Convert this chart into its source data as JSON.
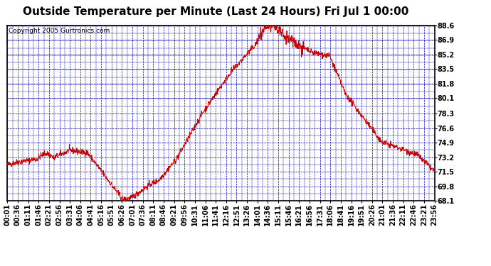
{
  "title": "Outside Temperature per Minute (Last 24 Hours) Fri Jul 1 00:00",
  "copyright": "Copyright 2005 Gurtronics.com",
  "ylabel_values": [
    68.1,
    69.8,
    71.5,
    73.2,
    74.9,
    76.6,
    78.3,
    80.1,
    81.8,
    83.5,
    85.2,
    86.9,
    88.6
  ],
  "ymin": 68.1,
  "ymax": 88.6,
  "bg_color": "#ffffff",
  "plot_bg_color": "#ffffff",
  "grid_color": "#0000bb",
  "line_color": "#cc0000",
  "title_fontsize": 11,
  "copyright_fontsize": 6.5,
  "tick_label_fontsize": 7,
  "x_tick_labels": [
    "00:01",
    "00:36",
    "01:11",
    "01:46",
    "02:21",
    "02:56",
    "03:31",
    "04:06",
    "04:41",
    "05:16",
    "05:51",
    "06:26",
    "07:01",
    "07:36",
    "08:11",
    "08:46",
    "09:21",
    "09:56",
    "10:31",
    "11:06",
    "11:41",
    "12:16",
    "12:51",
    "13:26",
    "14:01",
    "14:36",
    "15:11",
    "15:46",
    "16:21",
    "16:56",
    "17:31",
    "18:06",
    "18:41",
    "19:16",
    "19:51",
    "20:26",
    "21:01",
    "21:36",
    "22:11",
    "22:46",
    "23:21",
    "23:56"
  ]
}
